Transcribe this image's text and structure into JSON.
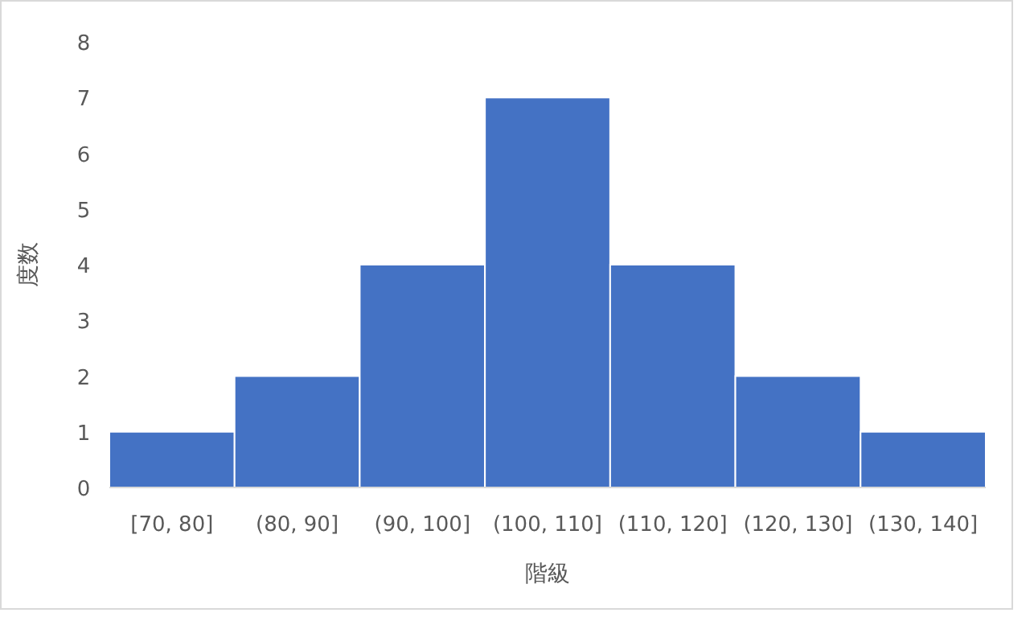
{
  "chart_data": {
    "type": "bar",
    "xlabel": "階級",
    "ylabel": "度数",
    "categories": [
      "[70, 80]",
      "(80, 90]",
      "(90, 100]",
      "(100, 110]",
      "(110, 120]",
      "(120, 130]",
      "(130, 140]"
    ],
    "values": [
      1,
      2,
      4,
      7,
      4,
      2,
      1
    ],
    "color": "#4472c4",
    "ylim": [
      0,
      8
    ],
    "yticks": [
      0,
      1,
      2,
      3,
      4,
      5,
      6,
      7,
      8
    ]
  }
}
